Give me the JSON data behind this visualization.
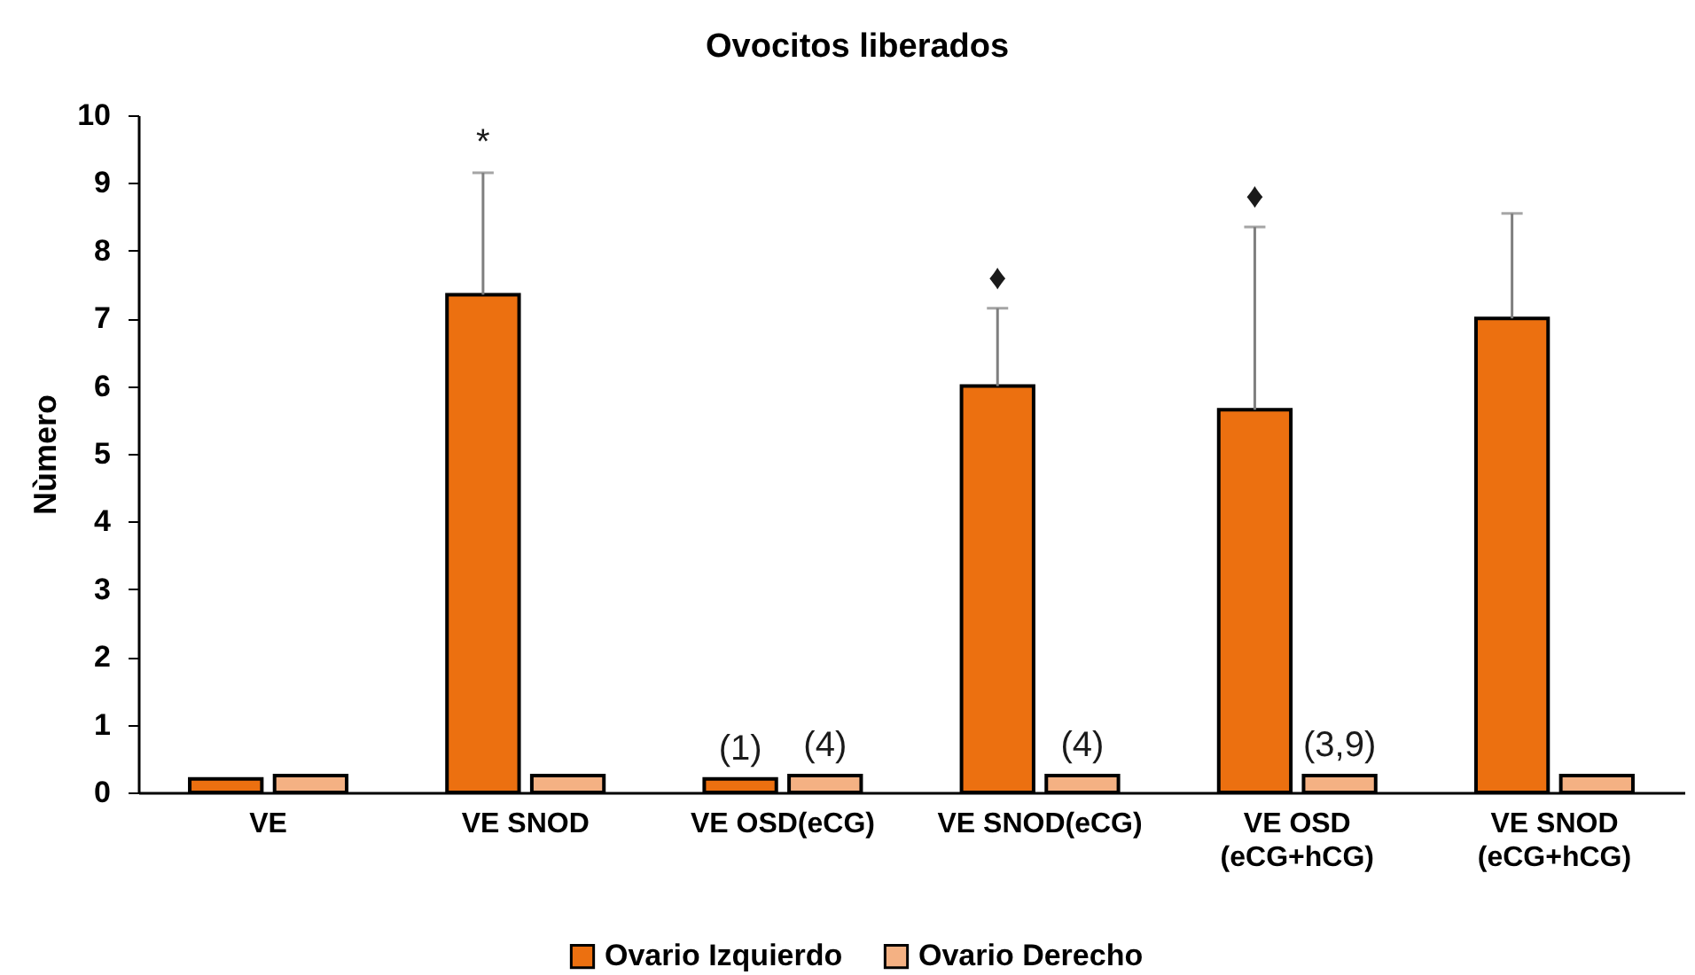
{
  "chart_data": {
    "type": "bar",
    "title": "Ovocitos liberados",
    "ylabel": "Nùmero",
    "categories": [
      "VE",
      "VE SNOD",
      "VE OSD(eCG)",
      "VE SNOD(eCG)",
      "VE OSD\n(eCG+hCG)",
      "VE SNOD\n(eCG+hCG)"
    ],
    "series": [
      {
        "name": "Ovario Izquierdo",
        "color": "#ec7010",
        "values": [
          0.2,
          7.35,
          0.2,
          6.0,
          5.65,
          7.0
        ],
        "errors": [
          null,
          [
            7.35,
            9.15
          ],
          null,
          [
            6.0,
            7.15
          ],
          [
            5.65,
            8.35
          ],
          [
            7.0,
            8.55
          ]
        ]
      },
      {
        "name": "Ovario Derecho",
        "color": "#f4b183",
        "values": [
          0.25,
          0.25,
          0.25,
          0.25,
          0.25,
          0.25
        ]
      }
    ],
    "annotations": [
      "*",
      {
        "text": "(1)",
        "x": "VE OSD(eCG)",
        "y": 0.2
      },
      {
        "text": "(4)",
        "x": "VE OSD(eCG)",
        "y": 0.25
      },
      "♦",
      {
        "text": "(4)",
        "x": "VE SNOD(eCG)",
        "y": 0.25
      },
      "♦",
      {
        "text": "(3,9)",
        "x": "VE OSD\n(eCG+hCG)",
        "y": 0.25
      }
    ],
    "ylim": [
      0,
      10
    ],
    "yticks": [
      0,
      1,
      2,
      3,
      4,
      5,
      6,
      7,
      8,
      9,
      10
    ],
    "legend": "bottom"
  }
}
